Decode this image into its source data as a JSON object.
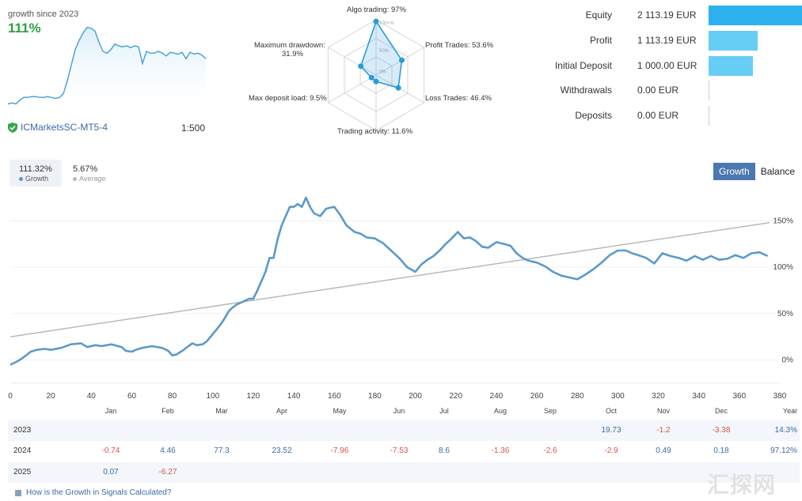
{
  "mini": {
    "title": "growth since 2023",
    "value": "111%",
    "broker": "ICMarketsSC-MT5-4",
    "leverage": "1:500",
    "curve": [
      3,
      4,
      3,
      7,
      10,
      10,
      11,
      11,
      10,
      10,
      11,
      10,
      9,
      10,
      14,
      28,
      45,
      62,
      72,
      80,
      86,
      85,
      82,
      70,
      60,
      58,
      62,
      68,
      66,
      65,
      66,
      64,
      66,
      65,
      47,
      60,
      58,
      58,
      60,
      58,
      55,
      59,
      58,
      57,
      59,
      52,
      59,
      57,
      58,
      56,
      52
    ]
  },
  "radar": {
    "axes": [
      {
        "label": "Algo trading: 97%",
        "value": 97
      },
      {
        "label": "Profit Trades: 53.6%",
        "value": 53.6
      },
      {
        "label": "Loss Trades: 46.4%",
        "value": 46.4
      },
      {
        "label": "Trading activity: 11.6%",
        "value": 11.6
      },
      {
        "label": "Max deposit load: 9.5%",
        "value": 9.5
      },
      {
        "label": "Maximum drawdown:",
        "label2": "31.9%",
        "value": 31.9
      }
    ],
    "ring_labels": [
      "100+%",
      "50%",
      "0%"
    ]
  },
  "account": [
    {
      "label": "Equity",
      "value": "2 113.19 EUR",
      "amount": 2113.19,
      "color": "#2db1ee"
    },
    {
      "label": "Profit",
      "value": "1 113.19 EUR",
      "amount": 1113.19,
      "color": "#66cef4"
    },
    {
      "label": "Initial Deposit",
      "value": "1 000.00 EUR",
      "amount": 1000.0,
      "color": "#66cef4"
    },
    {
      "label": "Withdrawals",
      "value": "0.00 EUR",
      "amount": 0,
      "color": "#cccccc"
    },
    {
      "label": "Deposits",
      "value": "0.00 EUR",
      "amount": 0,
      "color": "#cccccc"
    }
  ],
  "summary": {
    "growth_value": "111.32%",
    "growth_label": "Growth",
    "average_value": "5.67%",
    "average_label": "Average"
  },
  "toggle": {
    "growth": "Growth",
    "balance": "Balance"
  },
  "chart_data": {
    "type": "line",
    "title": "Growth",
    "x_ticks": [
      "0",
      "20",
      "40",
      "60",
      "80",
      "100",
      "120",
      "140",
      "160",
      "180",
      "200",
      "220",
      "240",
      "260",
      "280",
      "300",
      "320",
      "340",
      "360",
      "380"
    ],
    "y_ticks": [
      "0%",
      "50%",
      "100%",
      "150%"
    ],
    "xlim": [
      0,
      380
    ],
    "ylim": [
      -25,
      175
    ],
    "series": [
      {
        "name": "Growth",
        "color": "#5a9acb",
        "x": [
          0,
          3,
          6,
          10,
          13,
          17,
          20,
          25,
          30,
          35,
          38,
          42,
          45,
          50,
          55,
          57,
          60,
          62,
          65,
          70,
          75,
          78,
          80,
          82,
          85,
          88,
          90,
          92,
          95,
          97,
          100,
          103,
          105,
          108,
          110,
          112,
          114,
          116,
          118,
          120,
          122,
          124,
          126,
          128,
          130,
          132,
          134,
          136,
          138,
          140,
          142,
          144,
          146,
          148,
          150,
          153,
          156,
          158,
          160,
          163,
          166,
          170,
          173,
          176,
          180,
          184,
          188,
          192,
          196,
          200,
          203,
          206,
          209,
          212,
          215,
          218,
          221,
          224,
          227,
          230,
          233,
          236,
          240,
          244,
          247,
          250,
          253,
          256,
          260,
          264,
          268,
          272,
          276,
          280,
          284,
          288,
          292,
          296,
          300,
          304,
          307,
          310,
          314,
          318,
          322,
          326,
          330,
          334,
          338,
          342,
          346,
          350,
          354,
          358,
          362,
          366,
          370,
          374
        ],
        "y": [
          -5,
          -2,
          2,
          9,
          11,
          12,
          11,
          13,
          17,
          18,
          14,
          16,
          15,
          17,
          14,
          10,
          9,
          11,
          13,
          15,
          13,
          10,
          5,
          6,
          10,
          15,
          18,
          16,
          17,
          20,
          28,
          36,
          42,
          53,
          57,
          60,
          62,
          64,
          66,
          66,
          75,
          85,
          95,
          110,
          110,
          130,
          145,
          155,
          165,
          165,
          168,
          165,
          175,
          165,
          158,
          155,
          163,
          164,
          165,
          156,
          145,
          138,
          136,
          132,
          131,
          126,
          118,
          110,
          100,
          95,
          103,
          108,
          112,
          118,
          125,
          131,
          138,
          131,
          132,
          128,
          122,
          121,
          127,
          125,
          123,
          115,
          110,
          107,
          105,
          101,
          95,
          91,
          89,
          87,
          92,
          98,
          105,
          113,
          118,
          118,
          115,
          113,
          110,
          104,
          115,
          112,
          110,
          107,
          112,
          108,
          112,
          108,
          109,
          113,
          110,
          115,
          116,
          112
        ]
      },
      {
        "name": "Trend",
        "color": "#b9b9b9",
        "x": [
          0,
          375
        ],
        "y": [
          25,
          148
        ]
      }
    ]
  },
  "monthly": {
    "months": [
      "Jan",
      "Feb",
      "Mar",
      "Apr",
      "May",
      "Jun",
      "Jul",
      "Aug",
      "Sep",
      "Oct",
      "Nov",
      "Dec",
      "Year"
    ],
    "rows": [
      {
        "year": "2023",
        "cells": [
          "",
          "",
          "",
          "",
          "",
          "",
          "",
          "",
          "",
          "19.73",
          "-1.2",
          "-3.38"
        ],
        "total": "14.3%"
      },
      {
        "year": "2024",
        "cells": [
          "-0.74",
          "4.46",
          "77.3",
          "23.52",
          "-7.96",
          "-7.53",
          "8.6",
          "-1.36",
          "-2.6",
          "-2.9",
          "0.49",
          "0.18"
        ],
        "total": "97.12%"
      },
      {
        "year": "2025",
        "cells": [
          "0.07",
          "-6.27",
          "",
          "",
          "",
          "",
          "",
          "",
          "",
          "",
          "",
          ""
        ],
        "total": ""
      }
    ]
  },
  "footer": {
    "link": "How is the Growth in Signals Calculated?",
    "watermark": "汇探网"
  }
}
